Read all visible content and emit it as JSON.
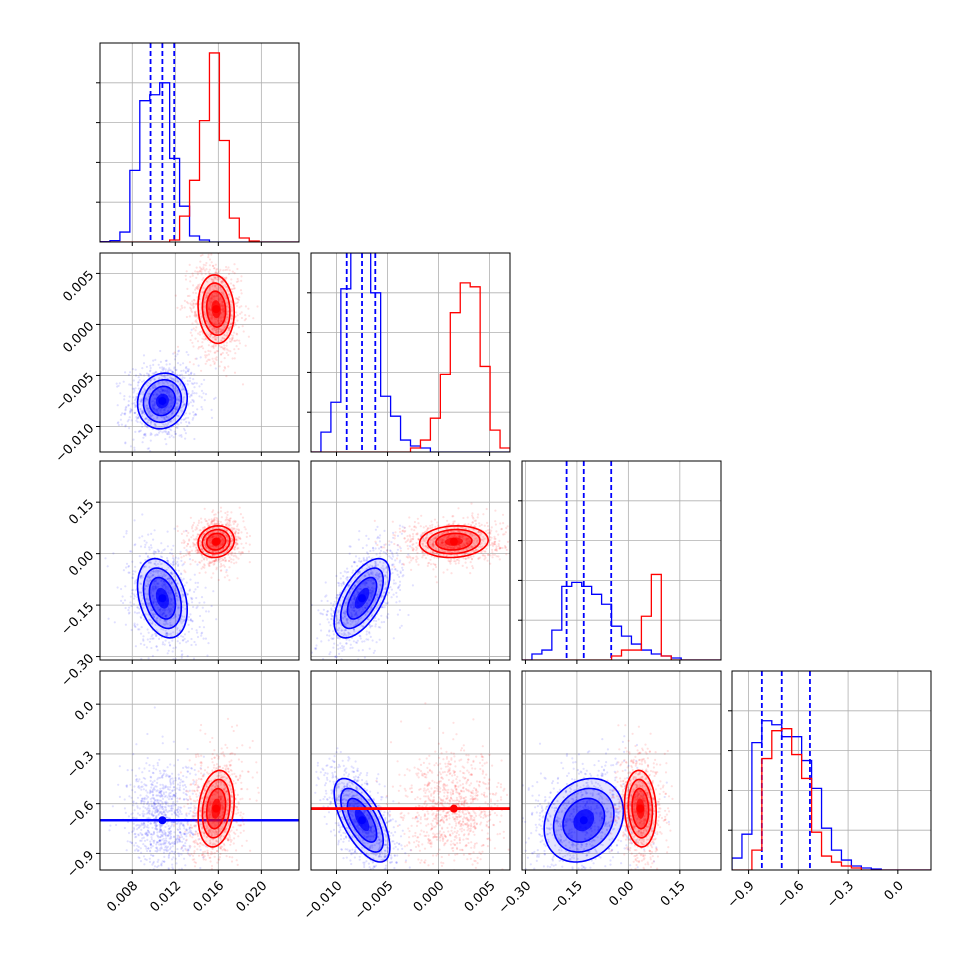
{
  "colors": {
    "blue": "#0000ff",
    "red": "#ff0000",
    "grid": "#b0b0b0",
    "axis": "#000000"
  },
  "chart_data": {
    "type": "corner",
    "title": "",
    "grid": true,
    "parameters": [
      {
        "range": [
          0.005,
          0.0235
        ],
        "ticks": [
          0.008,
          0.012,
          0.016,
          0.02
        ],
        "tick_labels": [
          "0.008",
          "0.012",
          "0.016",
          "0.020"
        ]
      },
      {
        "range": [
          -0.0125,
          0.007
        ],
        "ticks": [
          -0.01,
          -0.005,
          0.0,
          0.005
        ],
        "tick_labels": [
          "−0.010",
          "−0.005",
          "0.000",
          "0.005"
        ]
      },
      {
        "range": [
          -0.31,
          0.27
        ],
        "ticks": [
          -0.3,
          -0.15,
          0.0,
          0.15
        ],
        "tick_labels": [
          "−0.30",
          "−0.15",
          "0.00",
          "0.15"
        ]
      },
      {
        "range": [
          -1.0,
          0.2
        ],
        "ticks": [
          -0.9,
          -0.6,
          -0.3,
          0.0
        ],
        "tick_labels": [
          "−0.9",
          "−0.6",
          "−0.3",
          "0.0"
        ]
      }
    ],
    "series": [
      {
        "name": "blue",
        "color": "#0000ff",
        "mean": [
          0.0108,
          -0.0075,
          -0.13,
          -0.7
        ],
        "std": [
          0.0011,
          0.0013,
          0.055,
          0.12
        ],
        "corr": {
          "0-1": 0.1,
          "0-2": -0.3,
          "0-3": 0.0,
          "1-2": 0.6,
          "1-3": -0.65,
          "2-3": 0.2
        },
        "quantiles": [
          [
            0.0097,
            0.0108,
            0.0119
          ],
          [
            -0.009,
            -0.0075,
            -0.0062
          ],
          [
            -0.18,
            -0.13,
            -0.05
          ],
          [
            -0.82,
            -0.7,
            -0.53
          ]
        ],
        "histograms": [
          [
            0.002,
            0.007,
            0.05,
            0.36,
            0.71,
            0.74,
            0.8,
            0.42,
            0.18,
            0.03,
            0.01,
            0,
            0,
            0,
            0,
            0,
            0,
            0,
            0,
            0
          ],
          [
            0,
            0.1,
            0.25,
            0.82,
            1.0,
            1.0,
            0.8,
            0.28,
            0.18,
            0.06,
            0.03,
            0.02,
            0,
            0,
            0,
            0,
            0,
            0,
            0,
            0
          ],
          [
            0,
            0.03,
            0.05,
            0.15,
            0.37,
            0.39,
            0.37,
            0.33,
            0.28,
            0.17,
            0.12,
            0.08,
            0.05,
            0.03,
            0.02,
            0.01,
            0,
            0,
            0,
            0
          ],
          [
            0.06,
            0.18,
            0.64,
            0.75,
            0.73,
            0.67,
            0.67,
            0.55,
            0.41,
            0.21,
            0.1,
            0.05,
            0.02,
            0.01,
            0.005,
            0,
            0,
            0,
            0,
            0
          ]
        ]
      },
      {
        "name": "red",
        "color": "#ff0000",
        "mean": [
          0.0158,
          0.0015,
          0.035,
          -0.63
        ],
        "std": [
          0.0008,
          0.0016,
          0.022,
          0.11
        ],
        "corr": {
          "0-1": -0.1,
          "0-2": 0.1,
          "0-3": 0.2,
          "1-2": 0.1,
          "1-3": 0.0,
          "2-3": -0.1
        },
        "histograms": [
          [
            0,
            0,
            0,
            0,
            0,
            0,
            0,
            0.01,
            0.13,
            0.31,
            0.61,
            0.95,
            0.51,
            0.12,
            0.02,
            0.005,
            0,
            0,
            0,
            0
          ],
          [
            0,
            0,
            0,
            0,
            0,
            0,
            0,
            0,
            0,
            0,
            0.02,
            0.06,
            0.17,
            0.39,
            0.7,
            0.85,
            0.83,
            0.43,
            0.11,
            0.02
          ],
          [
            0,
            0,
            0,
            0,
            0,
            0,
            0,
            0,
            0,
            0.02,
            0.05,
            0.05,
            0.22,
            0.43,
            0.02,
            0,
            0,
            0,
            0,
            0
          ],
          [
            0,
            0,
            0.1,
            0.56,
            0.7,
            0.71,
            0.58,
            0.46,
            0.19,
            0.07,
            0.04,
            0.02,
            0.01,
            0,
            0,
            0,
            0,
            0,
            0,
            0
          ]
        ]
      }
    ]
  }
}
